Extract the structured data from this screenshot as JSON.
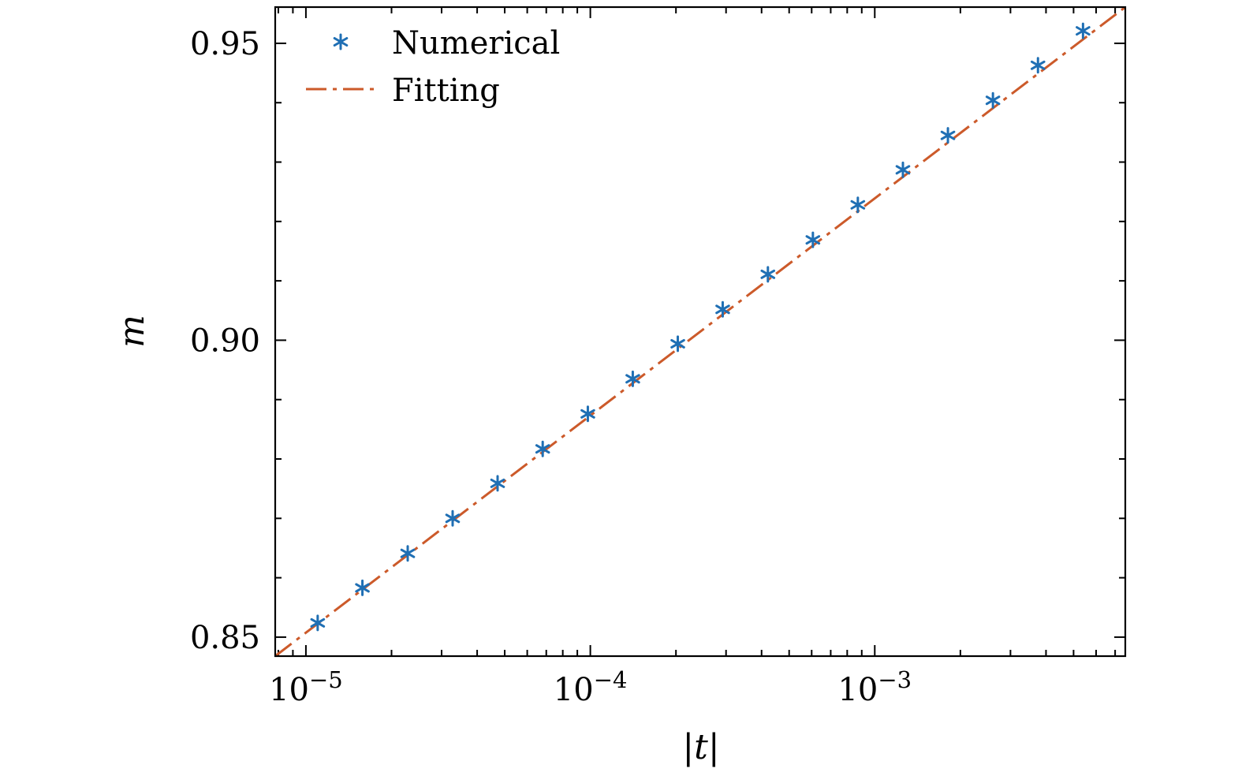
{
  "chart_data": {
    "type": "scatter",
    "title": "",
    "xlabel": "|t|",
    "ylabel": "m",
    "xscale": "log",
    "xlim": [
      7.8e-06,
      0.0076
    ],
    "ylim": [
      0.8468,
      0.9561
    ],
    "grid": false,
    "legend": {
      "position": "top-left",
      "entries": [
        "Numerical",
        "Fitting"
      ]
    },
    "x_ticks": [
      {
        "value": 1e-05,
        "base": "10",
        "exp": "−5"
      },
      {
        "value": 0.0001,
        "base": "10",
        "exp": "−4"
      },
      {
        "value": 0.001,
        "base": "10",
        "exp": "−3"
      }
    ],
    "y_ticks": [
      {
        "value": 0.85,
        "label": "0.85"
      },
      {
        "value": 0.9,
        "label": "0.90"
      },
      {
        "value": 0.95,
        "label": "0.95"
      }
    ],
    "series": [
      {
        "name": "Numerical",
        "style": "asterisk-marker",
        "color": "#1f6fb4",
        "x": [
          1.1e-05,
          1.58e-05,
          2.28e-05,
          3.28e-05,
          4.72e-05,
          6.8e-05,
          9.8e-05,
          0.000141,
          0.000203,
          0.000292,
          0.000421,
          0.000606,
          0.000872,
          0.001256,
          0.001808,
          0.002603,
          0.003748,
          0.005397
        ],
        "y": [
          0.8524,
          0.8583,
          0.8641,
          0.87,
          0.8759,
          0.8817,
          0.8876,
          0.8935,
          0.8994,
          0.9052,
          0.9111,
          0.9169,
          0.9228,
          0.9287,
          0.9345,
          0.9404,
          0.9463,
          0.9521
        ]
      },
      {
        "name": "Fitting",
        "style": "dash-dot-line",
        "color": "#cc5a2a",
        "x": [
          7.8e-06,
          0.0076
        ],
        "y": [
          0.8468,
          0.9561
        ]
      }
    ]
  }
}
